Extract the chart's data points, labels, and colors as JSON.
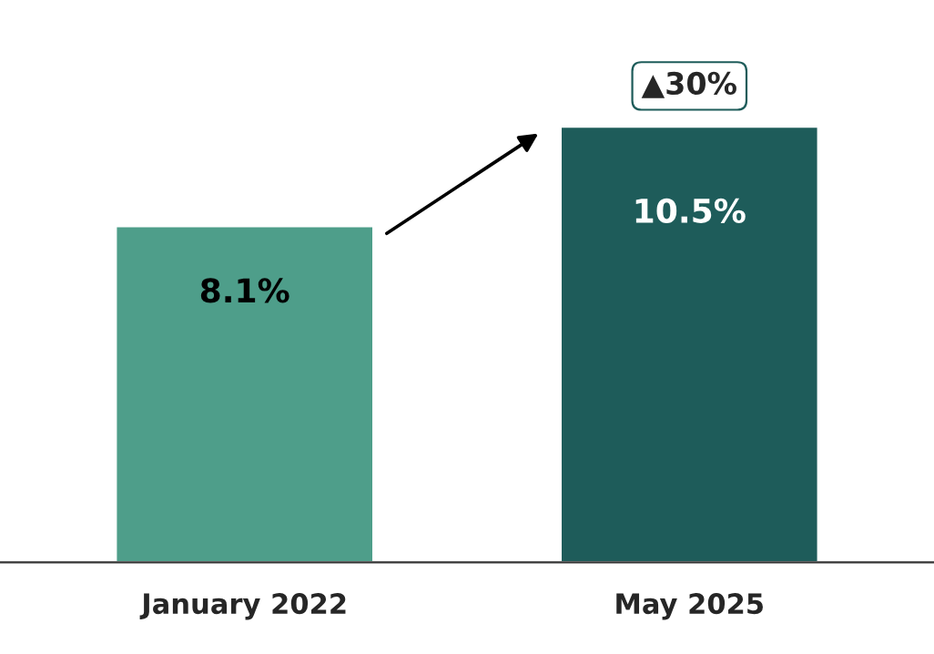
{
  "chart_data": {
    "type": "bar",
    "categories": [
      "January 2022",
      "May 2025"
    ],
    "values": [
      8.1,
      10.5
    ],
    "colors": [
      "#4e9e8a",
      "#1e5c5a"
    ],
    "value_labels": [
      "8.1%",
      "10.5%"
    ],
    "annotations": [
      {
        "text": "▲30%",
        "x": "May 2025",
        "y": 10.5
      }
    ],
    "grid": false,
    "legend": false,
    "tick_labels": "x"
  }
}
